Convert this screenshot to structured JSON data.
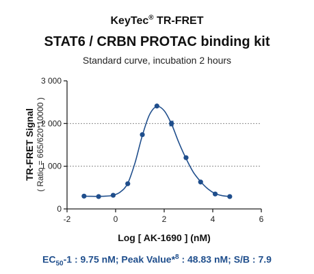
{
  "header": {
    "brand": "KeyTec",
    "brand_mark": "®",
    "brand_suffix": " TR-FRET",
    "title": "STAT6 / CRBN PROTAC binding kit",
    "subtitle": "Standard curve, incubation 2 hours"
  },
  "chart_data": {
    "type": "scatter",
    "xlabel": "Log [ AK-1690 ] (nM)",
    "ylabel": "TR-FRET Signal",
    "ylabel_sub": "( Ratio = 665/620*10000 )",
    "xlim": [
      -2,
      6
    ],
    "ylim": [
      0,
      3000
    ],
    "x_ticks": [
      -2,
      0,
      2,
      4,
      6
    ],
    "x_tick_labels": [
      "-2",
      "0",
      "2",
      "4",
      "6"
    ],
    "y_ticks": [
      0,
      1000,
      2000,
      3000
    ],
    "y_tick_labels": [
      "0",
      "1 000",
      "2 000",
      "3 000"
    ],
    "grid": "dashed horizontal at 1000 and 2000",
    "series": [
      {
        "color": "#1f4e8c",
        "x": [
          -1.3,
          -0.7,
          -0.1,
          0.5,
          1.1,
          1.7,
          2.3,
          2.9,
          3.5,
          4.1,
          4.7
        ],
        "y": [
          300,
          290,
          320,
          590,
          1740,
          2410,
          2000,
          1200,
          630,
          350,
          290
        ],
        "errors": [
          10,
          10,
          10,
          15,
          20,
          20,
          55,
          20,
          15,
          10,
          10
        ]
      }
    ],
    "fit_curve": {
      "x": [
        -1.3,
        -1.0,
        -0.7,
        -0.4,
        -0.1,
        0.2,
        0.5,
        0.8,
        1.1,
        1.4,
        1.7,
        2.0,
        2.3,
        2.6,
        2.9,
        3.2,
        3.5,
        3.8,
        4.1,
        4.4,
        4.7
      ],
      "y": [
        300,
        295,
        295,
        300,
        320,
        400,
        600,
        1080,
        1720,
        2210,
        2400,
        2300,
        1990,
        1560,
        1180,
        860,
        640,
        470,
        360,
        310,
        290
      ]
    }
  },
  "footer": {
    "ec_prefix": "EC",
    "ec_sub": "50",
    "ec_text": "-1 : 9.75 nM;  Peak Value*",
    "peak_sup": "8",
    "peak_text": " : 48.83 nM;  S/B : 7.9"
  }
}
